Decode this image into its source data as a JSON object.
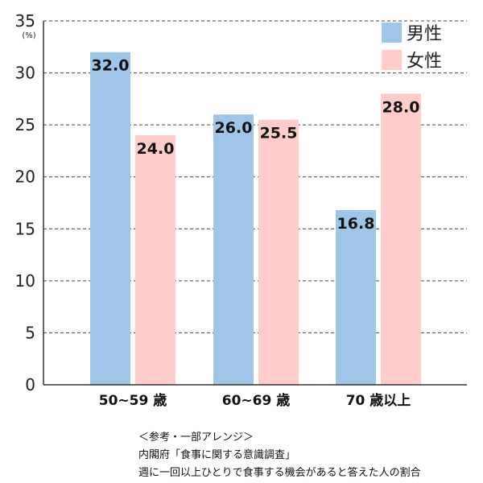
{
  "chart_data": {
    "type": "bar",
    "categories": [
      "50~59 歳",
      "60~69 歳",
      "70 歳以上"
    ],
    "series": [
      {
        "name": "男性",
        "values": [
          32.0,
          26.0,
          16.8
        ],
        "color": "#9fc5e8"
      },
      {
        "name": "女性",
        "values": [
          24.0,
          25.5,
          28.0
        ],
        "color": "#ffcccc"
      }
    ],
    "ylabel": "(%)",
    "ylim": [
      0,
      35
    ],
    "yticks": [
      0,
      5,
      10,
      15,
      20,
      25,
      30,
      35
    ],
    "grid": true,
    "legend_position": "top-right"
  },
  "footnote": {
    "line1": "＜参考・一部アレンジ＞",
    "line2": "内閣府「食事に関する意識調査」",
    "line3": "週に一回以上ひとりで食事する機会があると答えた人の割合"
  }
}
